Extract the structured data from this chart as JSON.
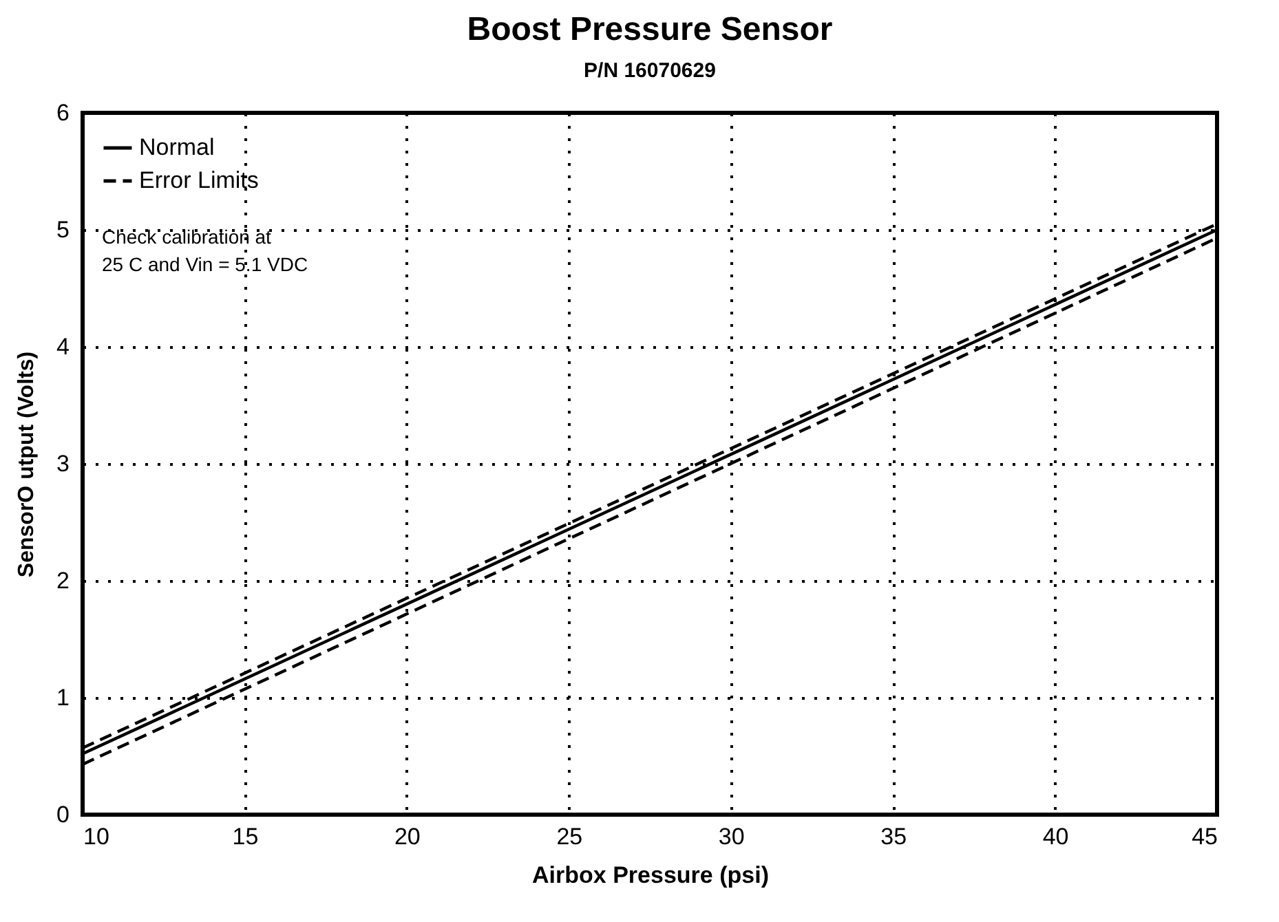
{
  "chart_data": {
    "type": "line",
    "title": "Boost Pressure Sensor",
    "subtitle": "P/N  16070629",
    "xlabel": "Airbox Pressure (psi)",
    "ylabel": "SensorO utput (Volts)",
    "annotations": [
      "Check calibration at\n25 C and Vin = 5.1 VDC"
    ],
    "x": [
      10,
      45
    ],
    "series": [
      {
        "name": "Normal",
        "color": "#000000",
        "line_style": "solid",
        "values": [
          0.52,
          5.0
        ]
      },
      {
        "name": "Error Limits",
        "color": "#000000",
        "line_style": "dashed",
        "values": [
          0.57,
          5.05
        ]
      },
      {
        "color": "#000000",
        "line_style": "dashed",
        "values": [
          0.43,
          4.93
        ]
      }
    ],
    "xlim": [
      10,
      45
    ],
    "xticks": [
      10,
      15,
      20,
      25,
      30,
      35,
      40,
      45
    ],
    "ylim": [
      0,
      6
    ],
    "yticks": [
      0,
      1,
      2,
      3,
      4,
      5,
      6
    ],
    "grid": true,
    "legend": "top left",
    "marker": "none"
  }
}
